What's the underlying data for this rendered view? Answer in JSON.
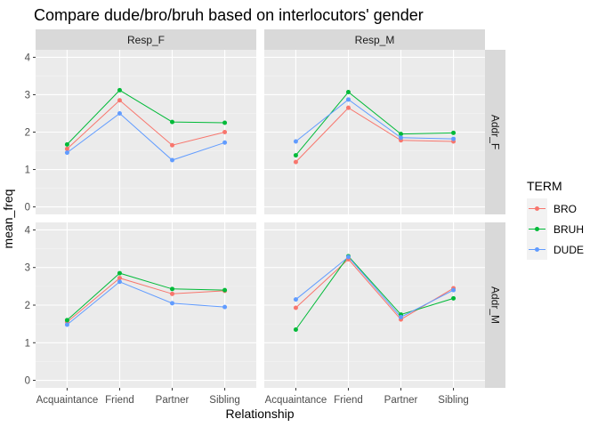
{
  "chart_data": {
    "type": "line",
    "title": "Compare dude/bro/bruh based on interlocutors' gender",
    "xlabel": "Relationship",
    "ylabel": "mean_freq",
    "categories": [
      "Acquaintance",
      "Friend",
      "Partner",
      "Sibling"
    ],
    "ylim": [
      0,
      4
    ],
    "yticks": [
      "0",
      "1",
      "2",
      "3",
      "4"
    ],
    "grid": true,
    "legend": {
      "title": "TERM",
      "placement": "right",
      "entries": [
        {
          "name": "BRO",
          "color": "#F8766D"
        },
        {
          "name": "BRUH",
          "color": "#00BA38"
        },
        {
          "name": "DUDE",
          "color": "#619CFF"
        }
      ]
    },
    "facet_cols": [
      "Resp_F",
      "Resp_M"
    ],
    "facet_rows": [
      "Addr_F",
      "Addr_M"
    ],
    "panels": [
      {
        "col": "Resp_F",
        "row": "Addr_F",
        "series": [
          {
            "name": "BRO",
            "values": [
              1.55,
              2.85,
              1.65,
              2.0
            ]
          },
          {
            "name": "BRUH",
            "values": [
              1.67,
              3.12,
              2.27,
              2.25
            ]
          },
          {
            "name": "DUDE",
            "values": [
              1.45,
              2.5,
              1.25,
              1.72
            ]
          }
        ]
      },
      {
        "col": "Resp_M",
        "row": "Addr_F",
        "series": [
          {
            "name": "BRO",
            "values": [
              1.2,
              2.65,
              1.78,
              1.75
            ]
          },
          {
            "name": "BRUH",
            "values": [
              1.38,
              3.07,
              1.95,
              1.98
            ]
          },
          {
            "name": "DUDE",
            "values": [
              1.75,
              2.87,
              1.85,
              1.82
            ]
          }
        ]
      },
      {
        "col": "Resp_F",
        "row": "Addr_M",
        "series": [
          {
            "name": "BRO",
            "values": [
              1.55,
              2.72,
              2.3,
              2.38
            ]
          },
          {
            "name": "BRUH",
            "values": [
              1.6,
              2.85,
              2.43,
              2.4
            ]
          },
          {
            "name": "DUDE",
            "values": [
              1.48,
              2.62,
              2.05,
              1.95
            ]
          }
        ]
      },
      {
        "col": "Resp_M",
        "row": "Addr_M",
        "series": [
          {
            "name": "BRO",
            "values": [
              1.93,
              3.22,
              1.62,
              2.45
            ]
          },
          {
            "name": "BRUH",
            "values": [
              1.35,
              3.3,
              1.75,
              2.18
            ]
          },
          {
            "name": "DUDE",
            "values": [
              2.15,
              3.28,
              1.68,
              2.4
            ]
          }
        ]
      }
    ]
  }
}
